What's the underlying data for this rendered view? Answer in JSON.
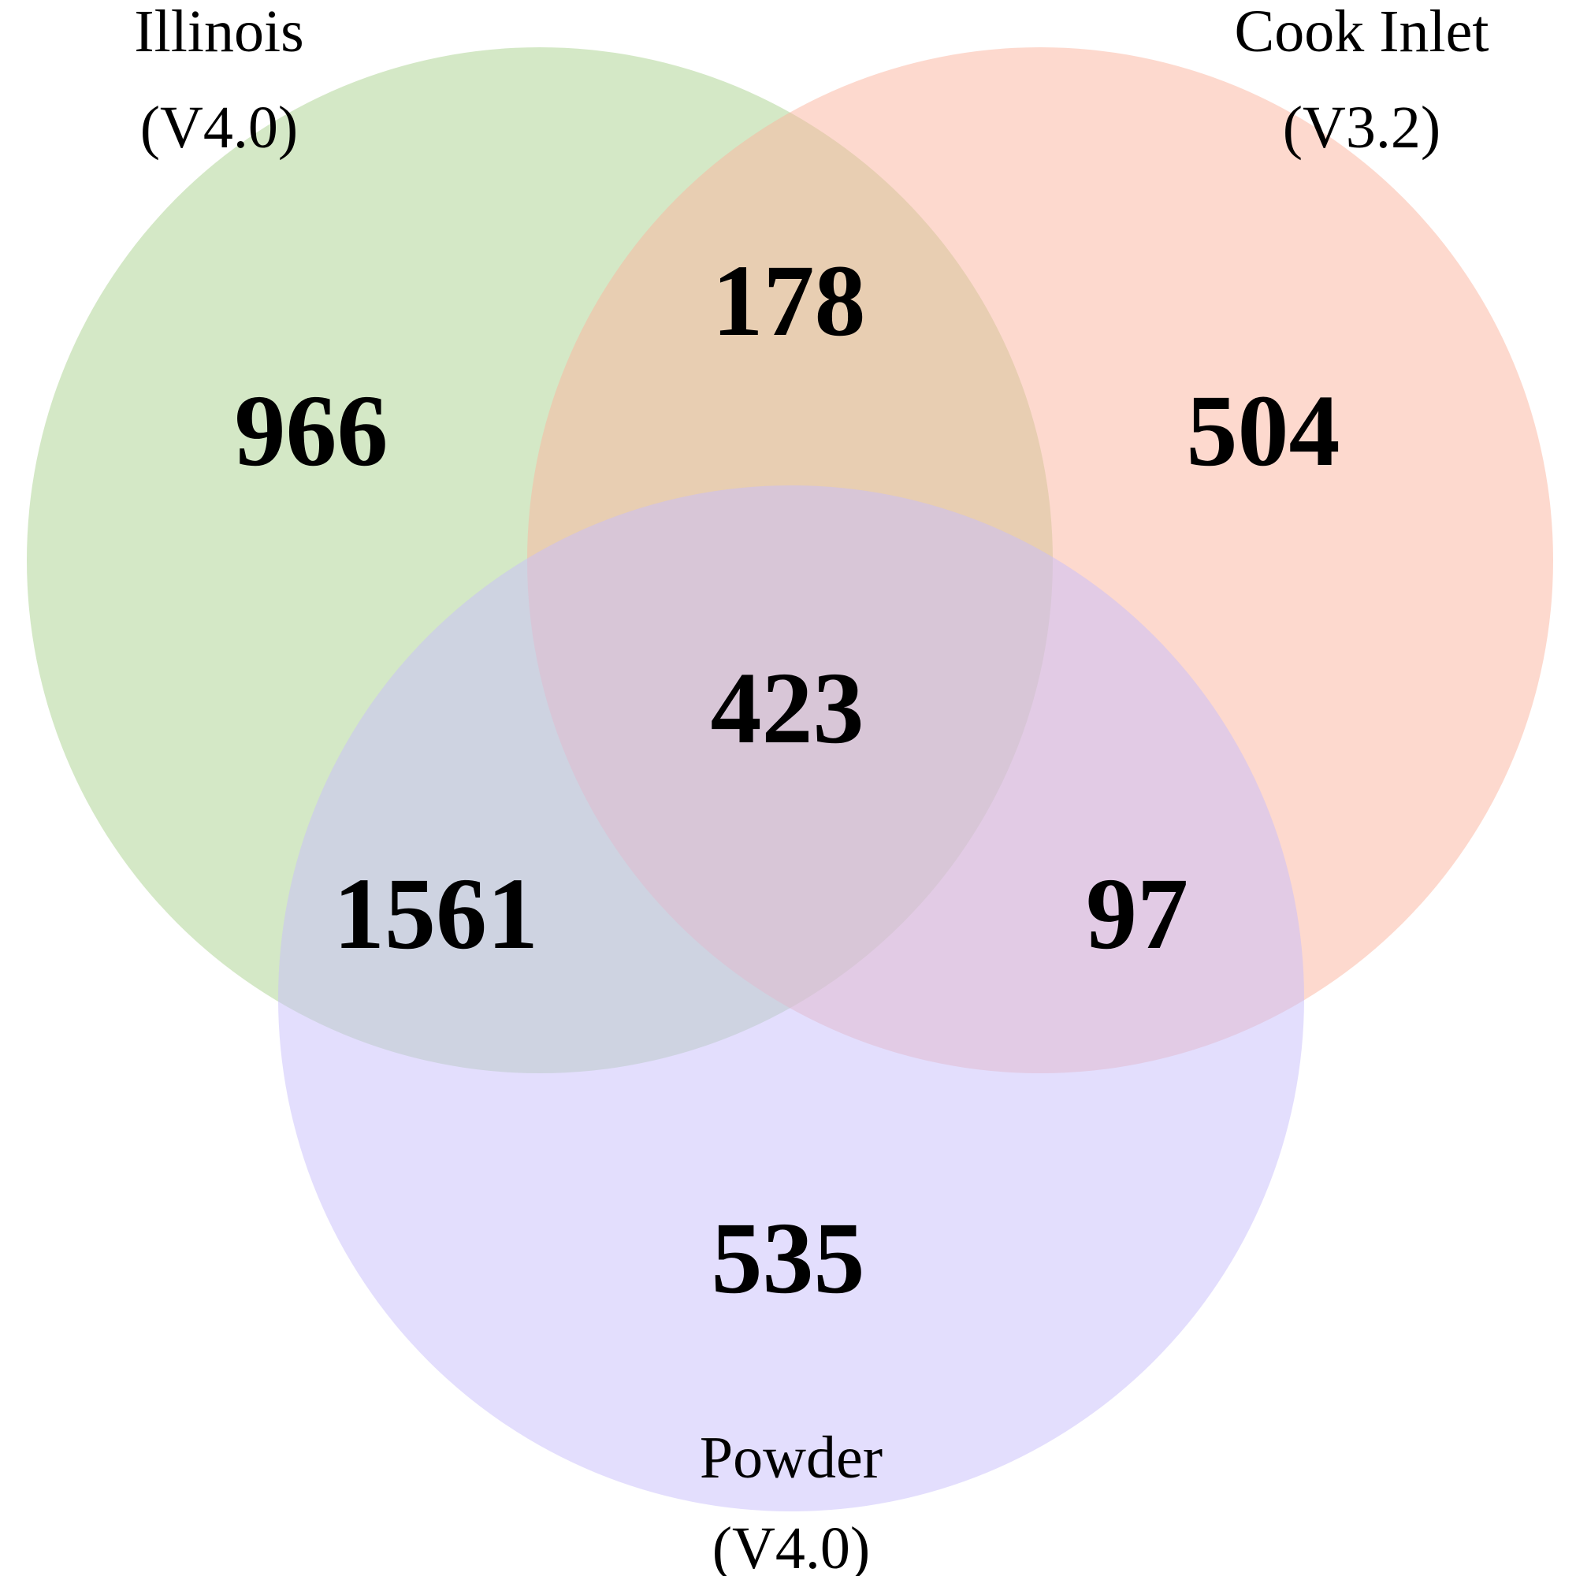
{
  "sets": [
    {
      "name": "Illinois",
      "version": "(V4.0)",
      "color": "#a9d18e"
    },
    {
      "name": "Cook Inlet",
      "version": "(V3.2)",
      "color": "#fbb39d"
    },
    {
      "name": "Powder",
      "version": "(V4.0)",
      "color": "#c7bdfb"
    }
  ],
  "regions": {
    "illinois_only": "966",
    "illinois_cook": "178",
    "cook_only": "504",
    "all_three": "423",
    "illinois_powder": "1561",
    "cook_powder": "97",
    "powder_only": "535"
  }
}
